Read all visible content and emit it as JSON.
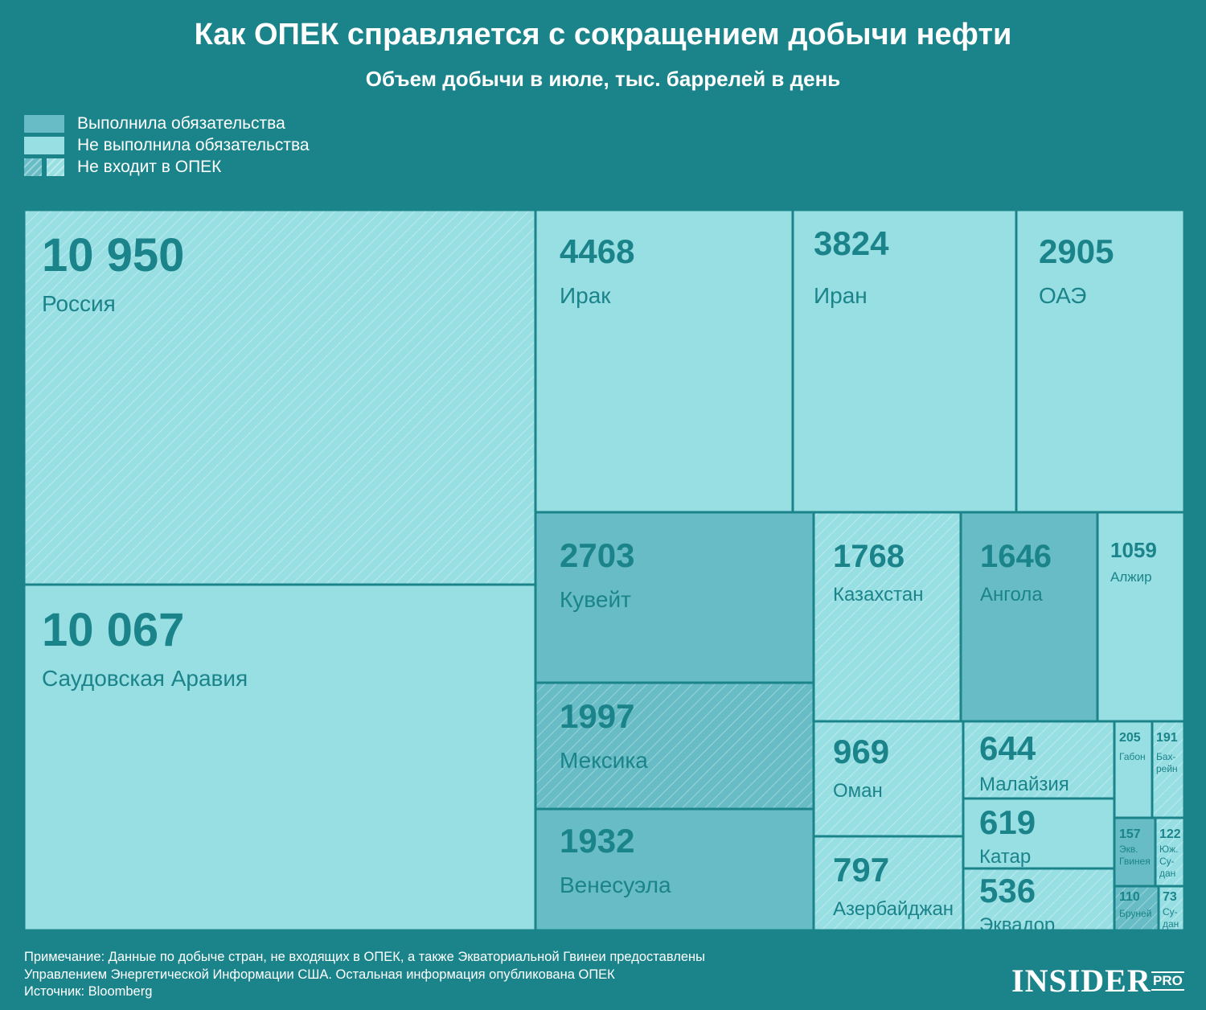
{
  "header": {
    "title": "Как ОПЕК справляется с сокращением добычи нефти",
    "subtitle": "Объем добычи в июле, тыс. баррелей в день"
  },
  "legend": {
    "complied": "Выполнила обязательства",
    "failed": "Не выполнила обязательства",
    "non_opec": "Не входит в ОПЕК"
  },
  "colors": {
    "background": "#1b848a",
    "complied": "#67bcc5",
    "failed": "#98dfe3",
    "text": "#1b848a"
  },
  "chart_data": {
    "type": "treemap",
    "title": "Объем добычи в июле, тыс. баррелей в день",
    "units": "тыс. баррелей в день",
    "items": [
      {
        "id": "russia",
        "label": "Россия",
        "display": "10 950",
        "value": 10950,
        "status": "failed",
        "non_opec": true
      },
      {
        "id": "saudi",
        "label": "Саудовская Аравия",
        "display": "10 067",
        "value": 10067,
        "status": "failed",
        "non_opec": false
      },
      {
        "id": "iraq",
        "label": "Ирак",
        "display": "4468",
        "value": 4468,
        "status": "failed",
        "non_opec": false
      },
      {
        "id": "iran",
        "label": "Иран",
        "display": "3824",
        "value": 3824,
        "status": "failed",
        "non_opec": false
      },
      {
        "id": "uae",
        "label": "ОАЭ",
        "display": "2905",
        "value": 2905,
        "status": "failed",
        "non_opec": false
      },
      {
        "id": "kuwait",
        "label": "Кувейт",
        "display": "2703",
        "value": 2703,
        "status": "complied",
        "non_opec": false
      },
      {
        "id": "mexico",
        "label": "Мексика",
        "display": "1997",
        "value": 1997,
        "status": "complied",
        "non_opec": true
      },
      {
        "id": "venezuela",
        "label": "Венесуэла",
        "display": "1932",
        "value": 1932,
        "status": "complied",
        "non_opec": false
      },
      {
        "id": "kazakhstan",
        "label": "Казахстан",
        "display": "1768",
        "value": 1768,
        "status": "failed",
        "non_opec": true
      },
      {
        "id": "angola",
        "label": "Ангола",
        "display": "1646",
        "value": 1646,
        "status": "complied",
        "non_opec": false
      },
      {
        "id": "algeria",
        "label": "Алжир",
        "display": "1059",
        "value": 1059,
        "status": "failed",
        "non_opec": false
      },
      {
        "id": "oman",
        "label": "Оман",
        "display": "969",
        "value": 969,
        "status": "failed",
        "non_opec": true
      },
      {
        "id": "azerbaijan",
        "label": "Азербайджан",
        "display": "797",
        "value": 797,
        "status": "failed",
        "non_opec": true
      },
      {
        "id": "malaysia",
        "label": "Малайзия",
        "display": "644",
        "value": 644,
        "status": "failed",
        "non_opec": true
      },
      {
        "id": "qatar",
        "label": "Катар",
        "display": "619",
        "value": 619,
        "status": "failed",
        "non_opec": false
      },
      {
        "id": "ecuador",
        "label": "Эквадор",
        "display": "536",
        "value": 536,
        "status": "failed",
        "non_opec": true
      },
      {
        "id": "gabon",
        "label": "Габон",
        "display": "205",
        "value": 205,
        "status": "failed",
        "non_opec": false
      },
      {
        "id": "bahrain",
        "label": "Бах-\nрейн",
        "display": "191",
        "value": 191,
        "status": "failed",
        "non_opec": true
      },
      {
        "id": "eqguinea",
        "label": "Экв.\nГвинея",
        "display": "157",
        "value": 157,
        "status": "complied",
        "non_opec": false
      },
      {
        "id": "ssudan",
        "label": "Юж.\nСу-\nдан",
        "display": "122",
        "value": 122,
        "status": "failed",
        "non_opec": true
      },
      {
        "id": "brunei",
        "label": "Бруней",
        "display": "110",
        "value": 110,
        "status": "complied",
        "non_opec": true
      },
      {
        "id": "sudan",
        "label": "Су-\nдан",
        "display": "73",
        "value": 73,
        "status": "failed",
        "non_opec": true
      }
    ]
  },
  "footer": {
    "note_line1": "Примечание: Данные по добыче стран, не входящих в ОПЕК, а также Экваториальной Гвинеи предоставлены",
    "note_line2": "Управлением Энергетической Информации США. Остальная информация опубликована ОПЕК",
    "source": "Источник: Bloomberg",
    "logo": "INSIDER",
    "logo_suffix": "PRO"
  }
}
